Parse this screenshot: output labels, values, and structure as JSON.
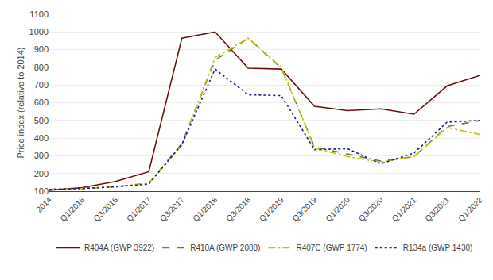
{
  "chart_data": {
    "type": "line",
    "categories": [
      "2014",
      "Q1/2016",
      "Q3/2016",
      "Q1/2017",
      "Q3/2017",
      "Q1/2018",
      "Q3/2018",
      "Q1/2019",
      "Q3/2019",
      "Q1/2020",
      "Q3/2020",
      "Q1/2021",
      "Q3/2021",
      "Q1/2022"
    ],
    "series": [
      {
        "name": "R404A (GWP 3922)",
        "color": "#6B1010",
        "line_style": "solid",
        "values": [
          105,
          120,
          155,
          210,
          965,
          1000,
          795,
          790,
          580,
          555,
          565,
          535,
          695,
          755
        ]
      },
      {
        "name": "R410A (GWP 2088)",
        "color": "#6B7B3A",
        "line_style": "dash",
        "values": [
          110,
          115,
          125,
          145,
          370,
          840,
          965,
          795,
          350,
          310,
          270,
          295,
          465,
          500
        ]
      },
      {
        "name": "R407C (GWP 1774)",
        "color": "#C8C000",
        "line_style": "dashdot",
        "values": [
          110,
          115,
          125,
          145,
          360,
          855,
          965,
          800,
          345,
          295,
          265,
          295,
          460,
          420
        ]
      },
      {
        "name": "R134a (GWP 1430)",
        "color": "#1C1C8C",
        "line_style": "dot",
        "values": [
          110,
          115,
          125,
          140,
          365,
          790,
          645,
          640,
          335,
          340,
          255,
          315,
          490,
          500
        ]
      }
    ],
    "y_label": "Price index (relative to 2014)",
    "ylim": [
      100,
      1100
    ],
    "yticks": [
      100,
      200,
      300,
      400,
      500,
      600,
      700,
      800,
      900,
      1000,
      1100
    ],
    "grid": true,
    "legend": "bottom"
  }
}
